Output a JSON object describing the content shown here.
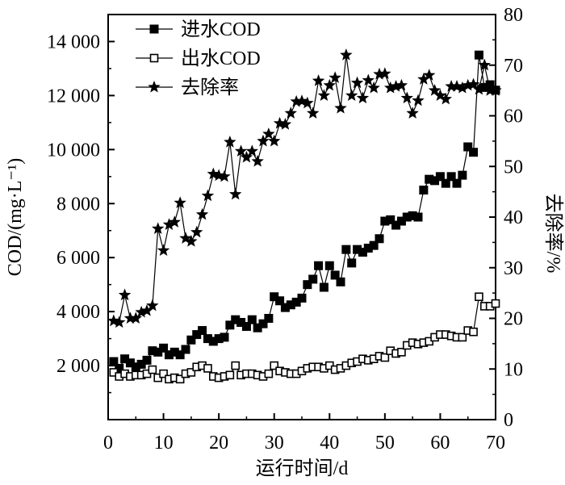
{
  "chart_data": {
    "type": "line",
    "xlabel": "运行时间/d",
    "ylabel_left": "COD/(mg·L⁻¹)",
    "ylabel_right": "去除率/%",
    "xlim": [
      0,
      70
    ],
    "ylim_left": [
      0,
      15000
    ],
    "ylim_right": [
      0,
      80
    ],
    "x_ticks": [
      0,
      10,
      20,
      30,
      40,
      50,
      60,
      70
    ],
    "x_tick_labels": [
      "0",
      "10",
      "20",
      "30",
      "40",
      "50",
      "60",
      "70"
    ],
    "y_left_ticks": [
      2000,
      4000,
      6000,
      8000,
      10000,
      12000,
      14000
    ],
    "y_left_tick_labels": [
      "2 000",
      "4 000",
      "6 000",
      "8 000",
      "10 000",
      "12 000",
      "14 000"
    ],
    "y_right_ticks": [
      0,
      10,
      20,
      30,
      40,
      50,
      60,
      70,
      80
    ],
    "y_right_tick_labels": [
      "0",
      "10",
      "20",
      "30",
      "40",
      "50",
      "60",
      "70",
      "80"
    ],
    "legend_position": "top-left",
    "grid": false,
    "x": [
      1,
      2,
      3,
      4,
      5,
      6,
      7,
      8,
      9,
      10,
      11,
      12,
      13,
      14,
      15,
      16,
      17,
      18,
      19,
      20,
      21,
      22,
      23,
      24,
      25,
      26,
      27,
      28,
      29,
      30,
      31,
      32,
      33,
      34,
      35,
      36,
      37,
      38,
      39,
      40,
      41,
      42,
      43,
      44,
      45,
      46,
      47,
      48,
      49,
      50,
      51,
      52,
      53,
      54,
      55,
      56,
      57,
      58,
      59,
      60,
      61,
      62,
      63,
      64,
      65,
      66,
      67,
      68,
      69,
      70
    ],
    "series": [
      {
        "name": "进水COD",
        "axis": "left",
        "marker": "filled-square",
        "values": [
          2150,
          1900,
          2250,
          2100,
          1950,
          2050,
          2200,
          2550,
          2500,
          2650,
          2400,
          2500,
          2400,
          2600,
          2950,
          3150,
          3300,
          3000,
          2900,
          3000,
          3050,
          3500,
          3700,
          3600,
          3450,
          3700,
          3400,
          3550,
          3750,
          4550,
          4400,
          4150,
          4250,
          4350,
          4500,
          5000,
          5200,
          5700,
          4900,
          5700,
          5350,
          5100,
          6300,
          5800,
          6300,
          6200,
          6350,
          6450,
          6700,
          7350,
          7400,
          7200,
          7350,
          7500,
          7550,
          7500,
          8500,
          8900,
          8850,
          9000,
          8750,
          9000,
          8750,
          9050,
          10100,
          9900,
          13500,
          12300,
          12400,
          12200
        ]
      },
      {
        "name": "出水COD",
        "axis": "left",
        "marker": "open-square",
        "values": [
          1750,
          1600,
          1700,
          1600,
          1650,
          1650,
          1700,
          1850,
          1550,
          1700,
          1500,
          1550,
          1500,
          1700,
          1750,
          1950,
          2000,
          1900,
          1600,
          1550,
          1600,
          1650,
          2000,
          1650,
          1700,
          1700,
          1650,
          1600,
          1700,
          2000,
          1800,
          1750,
          1700,
          1700,
          1800,
          1900,
          1950,
          1950,
          1900,
          2000,
          1850,
          1900,
          2000,
          2100,
          2150,
          2250,
          2200,
          2250,
          2350,
          2300,
          2550,
          2450,
          2500,
          2750,
          2850,
          2800,
          2850,
          2900,
          3050,
          3150,
          3150,
          3100,
          3050,
          3050,
          3300,
          3250,
          4550,
          4200,
          4200,
          4300
        ]
      },
      {
        "name": "去除率",
        "axis": "right",
        "marker": "filled-star",
        "values": [
          19.5,
          19.2,
          24.6,
          20.0,
          20.0,
          21.2,
          21.5,
          22.5,
          37.7,
          33.4,
          38.5,
          39.0,
          42.8,
          35.8,
          35.2,
          37.0,
          40.5,
          44.2,
          48.5,
          48.2,
          48.0,
          54.8,
          44.5,
          53.0,
          51.8,
          53.0,
          51.0,
          55.0,
          56.4,
          55.0,
          58.5,
          58.3,
          60.5,
          62.8,
          62.9,
          62.5,
          60.5,
          66.9,
          64.0,
          66.0,
          67.5,
          61.5,
          72.0,
          64.0,
          66.5,
          63.5,
          67.0,
          65.5,
          68.2,
          68.3,
          65.5,
          65.8,
          66.0,
          63.5,
          60.5,
          63.0,
          67.2,
          68.0,
          65.0,
          64.0,
          63.3,
          65.8,
          65.8,
          65.5,
          66.0,
          66.2,
          65.2,
          70.0,
          65.0,
          65.0
        ]
      }
    ]
  }
}
